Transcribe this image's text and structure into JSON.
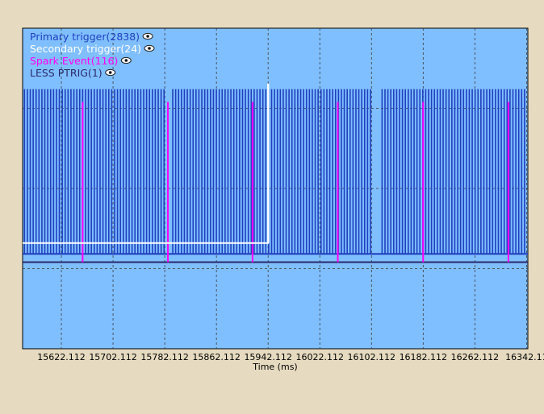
{
  "chart_data": {
    "type": "line",
    "title": "",
    "xlabel": "Time (ms)",
    "ylabel": "",
    "xlim": [
      15562.112,
      16344.112
    ],
    "ylim": [
      0,
      1
    ],
    "x_ticks": [
      15622.112,
      15702.112,
      15782.112,
      15862.112,
      15942.112,
      16022.112,
      16102.112,
      16182.112,
      16262.112,
      16342.112
    ],
    "x_tick_labels": [
      "15622.112",
      "15702.112",
      "15782.112",
      "15862.112",
      "15942.112",
      "16022.112",
      "16102.112",
      "16182.112",
      "16262.112",
      "16342.11"
    ],
    "grid": true,
    "legend_position": "top-left",
    "colors": {
      "plot_background": "#80bfff",
      "page_background": "#e6dbc0",
      "primary": "#1f3fbf",
      "secondary": "#ffffff",
      "spark": "#ff00ff",
      "less_ptrig": "#2a2a6a"
    },
    "series": [
      {
        "name": "Primary trigger(2838)",
        "kind": "pulse_train",
        "start": 15565.0,
        "end": 16340.0,
        "period": 4.5,
        "baseline": 0.296,
        "level": 0.81,
        "gaps": [
          [
            15785.0,
            15793.0
          ],
          [
            16105.0,
            16114.0
          ]
        ]
      },
      {
        "name": "Secondary trigger(24)",
        "kind": "step",
        "points": [
          [
            15562.112,
            0.33
          ],
          [
            15942.0,
            0.33
          ],
          [
            15942.0,
            0.825
          ],
          [
            15942.5,
            0.825
          ],
          [
            15942.5,
            0.33
          ]
        ]
      },
      {
        "name": "Spark Event(116)",
        "kind": "spikes",
        "baseline": 0.27,
        "level": 0.77,
        "x": [
          15655.0,
          15787.0,
          15918.0,
          16050.0,
          16182.0,
          16314.0
        ]
      },
      {
        "name": "LESS PTRIG(1)",
        "kind": "flat",
        "value": 0.27
      }
    ]
  }
}
